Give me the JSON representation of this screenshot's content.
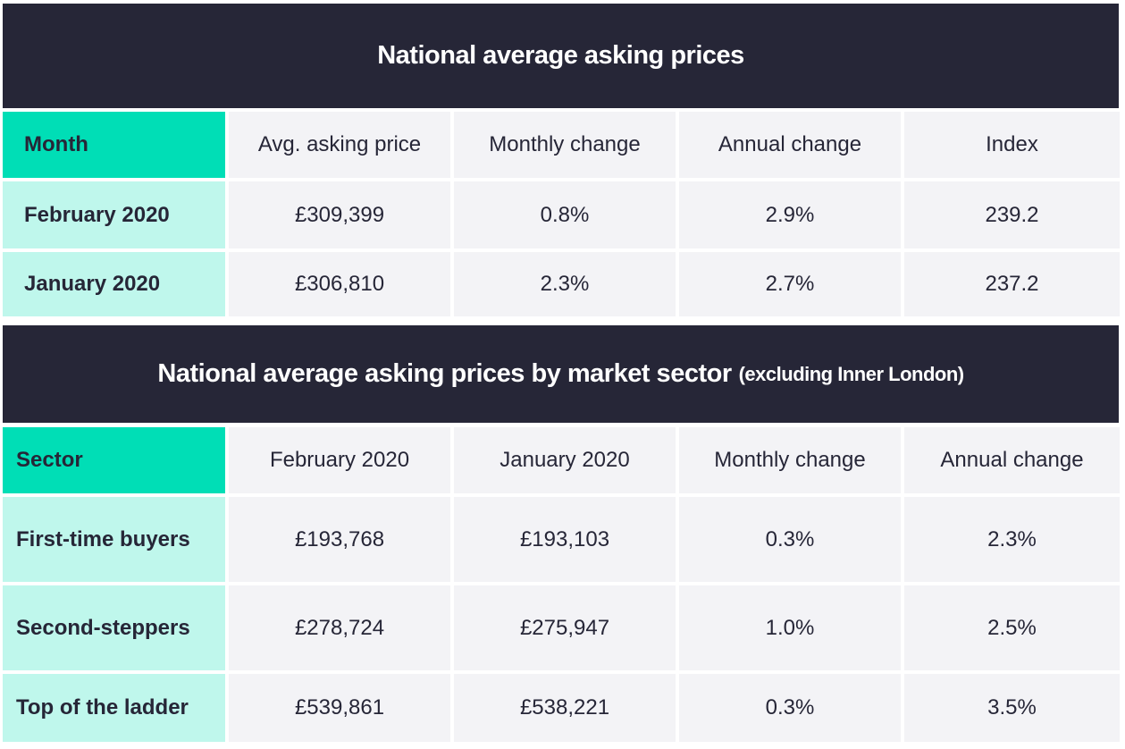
{
  "table1": {
    "title": "National average asking prices",
    "headers": [
      "Month",
      "Avg. asking price",
      "Monthly change",
      "Annual change",
      "Index"
    ],
    "rows": [
      [
        "February 2020",
        "£309,399",
        "0.8%",
        "2.9%",
        "239.2"
      ],
      [
        "January 2020",
        "£306,810",
        "2.3%",
        "2.7%",
        "237.2"
      ]
    ]
  },
  "table2": {
    "title": "National average asking prices by market sector",
    "subtitle": "(excluding Inner London)",
    "headers": [
      "Sector",
      "February 2020",
      "January 2020",
      "Monthly change",
      "Annual change"
    ],
    "rows": [
      [
        "First-time buyers",
        "£193,768",
        "£193,103",
        "0.3%",
        "2.3%"
      ],
      [
        "Second-steppers",
        "£278,724",
        "£275,947",
        "1.0%",
        "2.5%"
      ],
      [
        "Top of the ladder",
        "£539,861",
        "£538,221",
        "0.3%",
        "3.5%"
      ]
    ]
  },
  "colors": {
    "band": "#262637",
    "header_accent": "#00deb6",
    "row_accent": "#bff7ec",
    "cell": "#f3f3f6"
  },
  "chart_data": [
    {
      "type": "table",
      "title": "National average asking prices",
      "columns": [
        "Month",
        "Avg. asking price",
        "Monthly change",
        "Annual change",
        "Index"
      ],
      "rows": [
        [
          "February 2020",
          "£309,399",
          "0.8%",
          "2.9%",
          "239.2"
        ],
        [
          "January 2020",
          "£306,810",
          "2.3%",
          "2.7%",
          "237.2"
        ]
      ]
    },
    {
      "type": "table",
      "title": "National average asking prices by market sector",
      "subtitle": "(excluding Inner London)",
      "columns": [
        "Sector",
        "February 2020",
        "January 2020",
        "Monthly change",
        "Annual change"
      ],
      "rows": [
        [
          "First-time buyers",
          "£193,768",
          "£193,103",
          "0.3%",
          "2.3%"
        ],
        [
          "Second-steppers",
          "£278,724",
          "£275,947",
          "1.0%",
          "2.5%"
        ],
        [
          "Top of the ladder",
          "£539,861",
          "£538,221",
          "0.3%",
          "3.5%"
        ]
      ]
    }
  ]
}
